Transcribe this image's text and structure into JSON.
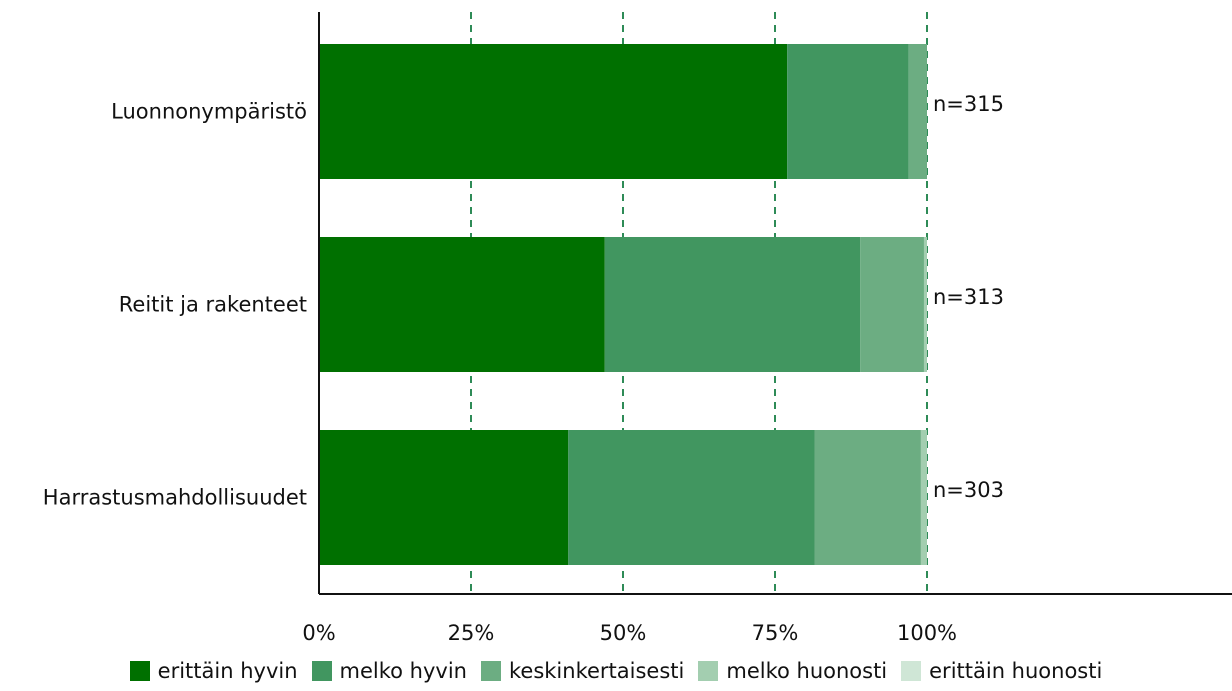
{
  "chart_data": {
    "type": "bar",
    "orientation": "horizontal",
    "stacked": true,
    "normalized": true,
    "categories": [
      "Luonnonympäristö",
      "Reitit ja rakenteet",
      "Harrastusmahdollisuudet"
    ],
    "sample_sizes": [
      "n=315",
      "n=313",
      "n=303"
    ],
    "series": [
      {
        "name": "erittäin hyvin",
        "color": "#007000",
        "values": [
          77,
          47,
          41
        ]
      },
      {
        "name": "melko hyvin",
        "color": "#419660",
        "values": [
          20,
          42,
          40.5
        ]
      },
      {
        "name": "keskinkertaisesti",
        "color": "#6cad82",
        "values": [
          3,
          10.5,
          17.5
        ]
      },
      {
        "name": "melko huonosti",
        "color": "#a3ceb0",
        "values": [
          0,
          0.5,
          1
        ]
      },
      {
        "name": "erittäin huonosti",
        "color": "#cfe6d6",
        "values": [
          0,
          0,
          0
        ]
      }
    ],
    "xlim": [
      0,
      100
    ],
    "x_ticks": [
      "0%",
      "25%",
      "50%",
      "75%",
      "100%"
    ],
    "grid": "vertical dashed",
    "legend": "bottom"
  }
}
